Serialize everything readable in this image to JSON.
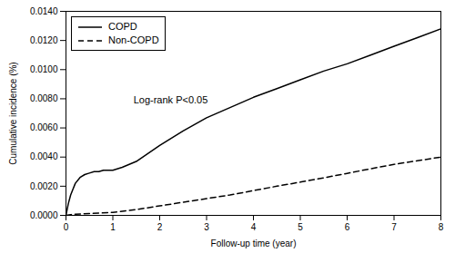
{
  "chart_data": {
    "type": "line",
    "title": "",
    "xlabel": "Follow-up time (year)",
    "ylabel": "Cumulative incidence (%)",
    "xlim": [
      0,
      8
    ],
    "ylim": [
      0,
      0.014
    ],
    "xticks": [
      0,
      1,
      2,
      3,
      4,
      5,
      6,
      7,
      8
    ],
    "yticks": [
      {
        "value": 0.0,
        "label": "0.0000"
      },
      {
        "value": 0.002,
        "label": "0.0020"
      },
      {
        "value": 0.004,
        "label": "0.0040"
      },
      {
        "value": 0.006,
        "label": "0.0060"
      },
      {
        "value": 0.008,
        "label": "0.0080"
      },
      {
        "value": 0.01,
        "label": "0.0100"
      },
      {
        "value": 0.012,
        "label": "0.0120"
      },
      {
        "value": 0.014,
        "label": "0.0140"
      }
    ],
    "series": [
      {
        "name": "COPD",
        "color": "#000000",
        "line_style": "solid",
        "x": [
          0,
          0.05,
          0.1,
          0.15,
          0.2,
          0.3,
          0.4,
          0.5,
          0.6,
          0.7,
          0.8,
          0.9,
          1.0,
          1.2,
          1.5,
          2.0,
          2.5,
          3.0,
          3.5,
          4.0,
          4.5,
          5.0,
          5.5,
          6.0,
          6.5,
          7.0,
          7.5,
          8.0
        ],
        "values": [
          0.0,
          0.0008,
          0.0014,
          0.0018,
          0.0022,
          0.0026,
          0.0028,
          0.0029,
          0.003,
          0.003,
          0.0031,
          0.0031,
          0.0031,
          0.0033,
          0.0037,
          0.0048,
          0.0058,
          0.0067,
          0.0074,
          0.0081,
          0.0087,
          0.0093,
          0.0099,
          0.0104,
          0.011,
          0.0116,
          0.0122,
          0.0128
        ]
      },
      {
        "name": "Non-COPD",
        "color": "#000000",
        "line_style": "dashed",
        "x": [
          0,
          0.1,
          0.2,
          0.5,
          1.0,
          1.5,
          2.0,
          2.5,
          3.0,
          3.5,
          4.0,
          4.5,
          5.0,
          5.5,
          6.0,
          6.5,
          7.0,
          7.5,
          8.0
        ],
        "values": [
          0.0,
          5e-05,
          8e-05,
          0.00012,
          0.0002,
          0.0004,
          0.00065,
          0.0009,
          0.00115,
          0.0014,
          0.0017,
          0.002,
          0.00228,
          0.00258,
          0.00288,
          0.0032,
          0.0035,
          0.00375,
          0.004
        ]
      }
    ],
    "annotation": "Log-rank P<0.05",
    "legend": "upper left",
    "grid": false
  }
}
